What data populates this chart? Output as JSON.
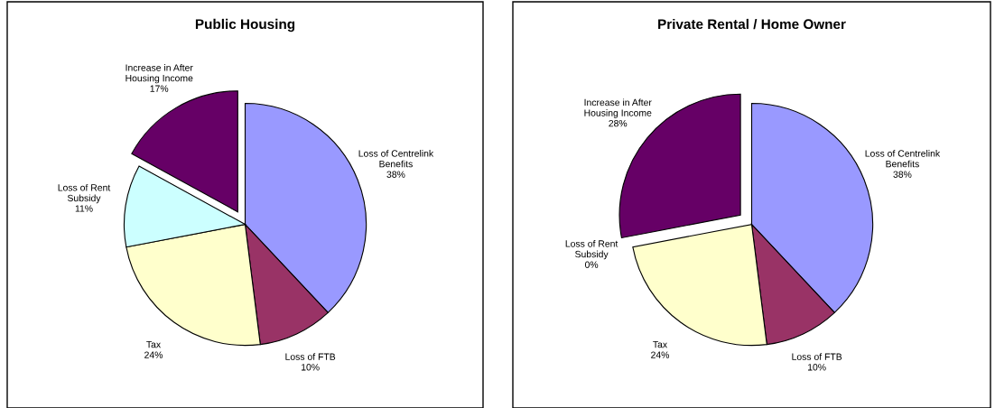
{
  "chart_data": [
    {
      "type": "pie",
      "title": "Public Housing",
      "categories": [
        "Loss of Centrelink\nBenefits",
        "Loss of FTB",
        "Tax",
        "Loss of Rent\nSubsidy",
        "Increase in After\nHousing Income"
      ],
      "values": [
        38,
        10,
        24,
        11,
        17
      ],
      "value_labels": [
        "38%",
        "10%",
        "24%",
        "11%",
        "17%"
      ],
      "colors": [
        "#9999ff",
        "#993366",
        "#ffffcc",
        "#ccffff",
        "#660066"
      ],
      "legend": false
    },
    {
      "type": "pie",
      "title": "Private Rental / Home Owner",
      "categories": [
        "Loss of Centrelink\nBenefits",
        "Loss of FTB",
        "Tax",
        "Loss of Rent\nSubsidy",
        "Increase in After\nHousing Income"
      ],
      "values": [
        38,
        10,
        24,
        0,
        28
      ],
      "value_labels": [
        "38%",
        "10%",
        "24%",
        "0%",
        "28%"
      ],
      "colors": [
        "#9999ff",
        "#993366",
        "#ffffcc",
        "#ccffff",
        "#660066"
      ],
      "legend": false
    }
  ]
}
